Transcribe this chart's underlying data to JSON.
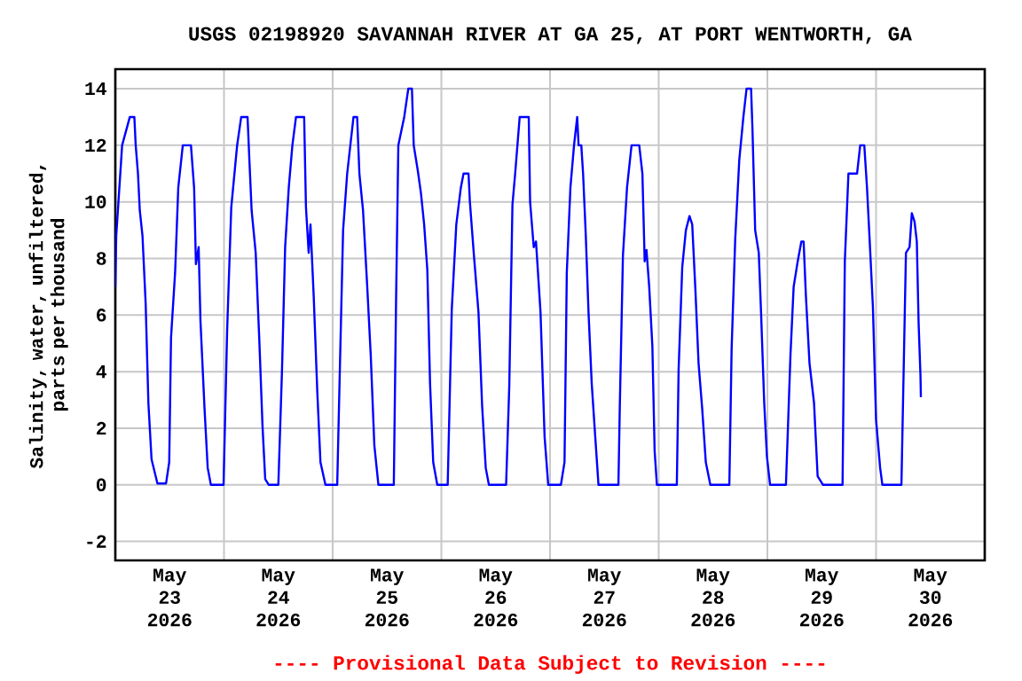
{
  "chart_data": {
    "type": "line",
    "title": "USGS 02198920 SAVANNAH RIVER AT GA 25, AT PORT WENTWORTH, GA",
    "ylabel": "Salinity, water, unfiltered, parts per thousand",
    "annotations": [
      "---- Provisional Data Subject to Revision ----"
    ],
    "x": [
      "2026-05-23T00:00",
      "2026-05-23T00:12",
      "2026-05-23T01:30",
      "2026-05-23T03:12",
      "2026-05-23T04:12",
      "2026-05-23T04:30",
      "2026-05-23T05:00",
      "2026-05-23T05:24",
      "2026-05-23T06:00",
      "2026-05-23T06:42",
      "2026-05-23T07:18",
      "2026-05-23T08:00",
      "2026-05-23T09:18",
      "2026-05-23T11:12",
      "2026-05-23T11:54",
      "2026-05-23T12:18",
      "2026-05-23T13:12",
      "2026-05-23T13:54",
      "2026-05-23T14:54",
      "2026-05-23T16:42",
      "2026-05-23T17:24",
      "2026-05-23T17:48",
      "2026-05-23T18:24",
      "2026-05-23T18:48",
      "2026-05-23T19:42",
      "2026-05-23T20:24",
      "2026-05-23T21:06",
      "2026-05-23T23:54",
      "2026-05-24T00:42",
      "2026-05-24T01:36",
      "2026-05-24T02:54",
      "2026-05-24T03:48",
      "2026-05-24T05:12",
      "2026-05-24T05:36",
      "2026-05-24T06:06",
      "2026-05-24T07:00",
      "2026-05-24T07:48",
      "2026-05-24T08:30",
      "2026-05-24T09:06",
      "2026-05-24T09:54",
      "2026-05-24T12:00",
      "2026-05-24T12:48",
      "2026-05-24T13:30",
      "2026-05-24T14:18",
      "2026-05-24T15:06",
      "2026-05-24T15:54",
      "2026-05-24T17:42",
      "2026-05-24T18:06",
      "2026-05-24T18:42",
      "2026-05-24T19:06",
      "2026-05-24T19:48",
      "2026-05-24T20:36",
      "2026-05-24T21:18",
      "2026-05-24T22:24",
      "2026-05-25T01:00",
      "2026-05-25T01:36",
      "2026-05-25T02:18",
      "2026-05-25T03:12",
      "2026-05-25T04:36",
      "2026-05-25T05:24",
      "2026-05-25T05:54",
      "2026-05-25T06:42",
      "2026-05-25T07:36",
      "2026-05-25T08:24",
      "2026-05-25T09:12",
      "2026-05-25T10:06",
      "2026-05-25T13:30",
      "2026-05-25T14:00",
      "2026-05-25T14:30",
      "2026-05-25T15:48",
      "2026-05-25T16:42",
      "2026-05-25T17:30",
      "2026-05-25T17:54",
      "2026-05-25T18:48",
      "2026-05-25T19:30",
      "2026-05-25T20:12",
      "2026-05-25T20:54",
      "2026-05-25T21:30",
      "2026-05-25T22:12",
      "2026-05-25T23:06",
      "2026-05-26T01:24",
      "2026-05-26T02:18",
      "2026-05-26T03:18",
      "2026-05-26T04:18",
      "2026-05-26T04:54",
      "2026-05-26T06:00",
      "2026-05-26T06:18",
      "2026-05-26T07:12",
      "2026-05-26T08:12",
      "2026-05-26T09:00",
      "2026-05-26T09:48",
      "2026-05-26T10:30",
      "2026-05-26T14:18",
      "2026-05-26T15:00",
      "2026-05-26T15:42",
      "2026-05-26T16:18",
      "2026-05-26T17:18",
      "2026-05-26T19:18",
      "2026-05-26T19:36",
      "2026-05-26T20:24",
      "2026-05-26T20:54",
      "2026-05-26T21:54",
      "2026-05-26T22:48",
      "2026-05-26T23:36",
      "2026-05-27T02:24",
      "2026-05-27T03:12",
      "2026-05-27T03:42",
      "2026-05-27T04:30",
      "2026-05-27T05:18",
      "2026-05-27T06:00",
      "2026-05-27T06:18",
      "2026-05-27T06:54",
      "2026-05-27T07:18",
      "2026-05-27T07:54",
      "2026-05-27T08:30",
      "2026-05-27T09:12",
      "2026-05-27T09:54",
      "2026-05-27T10:42",
      "2026-05-27T15:06",
      "2026-05-27T15:24",
      "2026-05-27T16:06",
      "2026-05-27T17:00",
      "2026-05-27T18:00",
      "2026-05-27T19:42",
      "2026-05-27T20:24",
      "2026-05-27T20:54",
      "2026-05-27T21:18",
      "2026-05-27T21:54",
      "2026-05-27T22:36",
      "2026-05-27T23:06",
      "2026-05-27T23:36",
      "2026-05-28T04:00",
      "2026-05-28T04:24",
      "2026-05-28T05:12",
      "2026-05-28T06:00",
      "2026-05-28T06:48",
      "2026-05-28T07:24",
      "2026-05-28T08:06",
      "2026-05-28T08:48",
      "2026-05-28T09:36",
      "2026-05-28T10:24",
      "2026-05-28T11:24",
      "2026-05-28T15:36",
      "2026-05-28T16:06",
      "2026-05-28T16:54",
      "2026-05-28T17:48",
      "2026-05-28T18:42",
      "2026-05-28T19:24",
      "2026-05-28T20:24",
      "2026-05-28T20:42",
      "2026-05-28T21:18",
      "2026-05-28T22:06",
      "2026-05-28T22:36",
      "2026-05-28T23:18",
      "2026-05-28T23:54",
      "2026-05-29T00:36",
      "2026-05-29T04:06",
      "2026-05-29T05:06",
      "2026-05-29T05:48",
      "2026-05-29T06:42",
      "2026-05-29T07:30",
      "2026-05-29T08:00",
      "2026-05-29T08:30",
      "2026-05-29T09:18",
      "2026-05-29T10:18",
      "2026-05-29T11:06",
      "2026-05-29T12:18",
      "2026-05-29T16:36",
      "2026-05-29T17:06",
      "2026-05-29T17:54",
      "2026-05-29T19:48",
      "2026-05-29T20:30",
      "2026-05-29T21:24",
      "2026-05-29T22:00",
      "2026-05-29T22:36",
      "2026-05-29T23:18",
      "2026-05-30T00:00",
      "2026-05-30T00:54",
      "2026-05-30T01:24",
      "2026-05-30T05:36",
      "2026-05-30T06:06",
      "2026-05-30T06:36",
      "2026-05-30T07:24",
      "2026-05-30T07:54",
      "2026-05-30T08:30",
      "2026-05-30T09:00",
      "2026-05-30T09:24",
      "2026-05-30T09:48",
      "2026-05-30T09:54"
    ],
    "series": [
      {
        "color": "#0000ff",
        "values": [
          7.0,
          8.8,
          12.0,
          13.0,
          13.0,
          12.0,
          11.0,
          9.7,
          8.8,
          6.4,
          2.9,
          0.9,
          0.05,
          0.05,
          0.8,
          5.2,
          7.5,
          10.5,
          12.0,
          12.0,
          10.5,
          7.8,
          8.4,
          5.8,
          2.7,
          0.6,
          0,
          0,
          5.5,
          9.8,
          12,
          13,
          13,
          11.5,
          9.7,
          8.2,
          5.1,
          2.1,
          0.2,
          0,
          0,
          4.0,
          8.4,
          10.5,
          12,
          13,
          13,
          9.8,
          8.2,
          9.2,
          6.7,
          3.3,
          0.8,
          0,
          0,
          4.2,
          9.0,
          11,
          13,
          13,
          11,
          9.7,
          7.1,
          4.6,
          1.4,
          0,
          0,
          6.5,
          12,
          13,
          14,
          14,
          12,
          11.1,
          10.3,
          9.2,
          7.6,
          3.6,
          0.8,
          0,
          0,
          6.2,
          9.2,
          10.5,
          11,
          11,
          10.0,
          8.1,
          6.1,
          2.8,
          0.6,
          0,
          0,
          3.5,
          9.9,
          11,
          13,
          13,
          10.0,
          8.4,
          8.6,
          6.1,
          1.7,
          0,
          0,
          0.8,
          7.5,
          10.5,
          12,
          13,
          12,
          12,
          11,
          8.8,
          6.1,
          3.6,
          1.9,
          0,
          0,
          2.7,
          8.1,
          10.5,
          12,
          12,
          11,
          7.9,
          8.3,
          7.0,
          4.9,
          1.2,
          0,
          0,
          4.1,
          7.7,
          9.0,
          9.5,
          9.2,
          6.9,
          4.3,
          2.7,
          0.8,
          0,
          0,
          4.8,
          8.7,
          11.5,
          13,
          14,
          14,
          12.6,
          9.0,
          8.2,
          6.1,
          2.9,
          1.0,
          0,
          0,
          4.6,
          7.0,
          7.9,
          8.6,
          8.6,
          6.7,
          4.3,
          2.9,
          0.3,
          0,
          0,
          7.9,
          11,
          11,
          12,
          12,
          10.5,
          8.6,
          6.3,
          2.3,
          0.6,
          0,
          0,
          4.1,
          8.2,
          8.4,
          9.6,
          9.3,
          8.6,
          5.7,
          3.9,
          3.1
        ]
      }
    ],
    "xlim": [
      "2026-05-23T00:00",
      "2026-05-31T00:00"
    ],
    "xticks": [
      {
        "value": "2026-05-23T12:00",
        "label": "May 23 2026"
      },
      {
        "value": "2026-05-24T00:00",
        "label": null
      },
      {
        "value": "2026-05-24T12:00",
        "label": "May 24 2026"
      },
      {
        "value": "2026-05-25T00:00",
        "label": null
      },
      {
        "value": "2026-05-25T12:00",
        "label": "May 25 2026"
      },
      {
        "value": "2026-05-26T00:00",
        "label": null
      },
      {
        "value": "2026-05-26T12:00",
        "label": "May 26 2026"
      },
      {
        "value": "2026-05-27T00:00",
        "label": null
      },
      {
        "value": "2026-05-27T12:00",
        "label": "May 27 2026"
      },
      {
        "value": "2026-05-28T00:00",
        "label": null
      },
      {
        "value": "2026-05-28T12:00",
        "label": "May 28 2026"
      },
      {
        "value": "2026-05-29T00:00",
        "label": null
      },
      {
        "value": "2026-05-29T12:00",
        "label": "May 29 2026"
      },
      {
        "value": "2026-05-30T00:00",
        "label": null
      },
      {
        "value": "2026-05-30T12:00",
        "label": "May 30 2026"
      }
    ],
    "ylim": [
      -2.67,
      14.69
    ],
    "yticks": [
      -2,
      0,
      2,
      4,
      6,
      8,
      10,
      12,
      14
    ],
    "grid": true,
    "marker": "none",
    "line_style": "solid"
  }
}
